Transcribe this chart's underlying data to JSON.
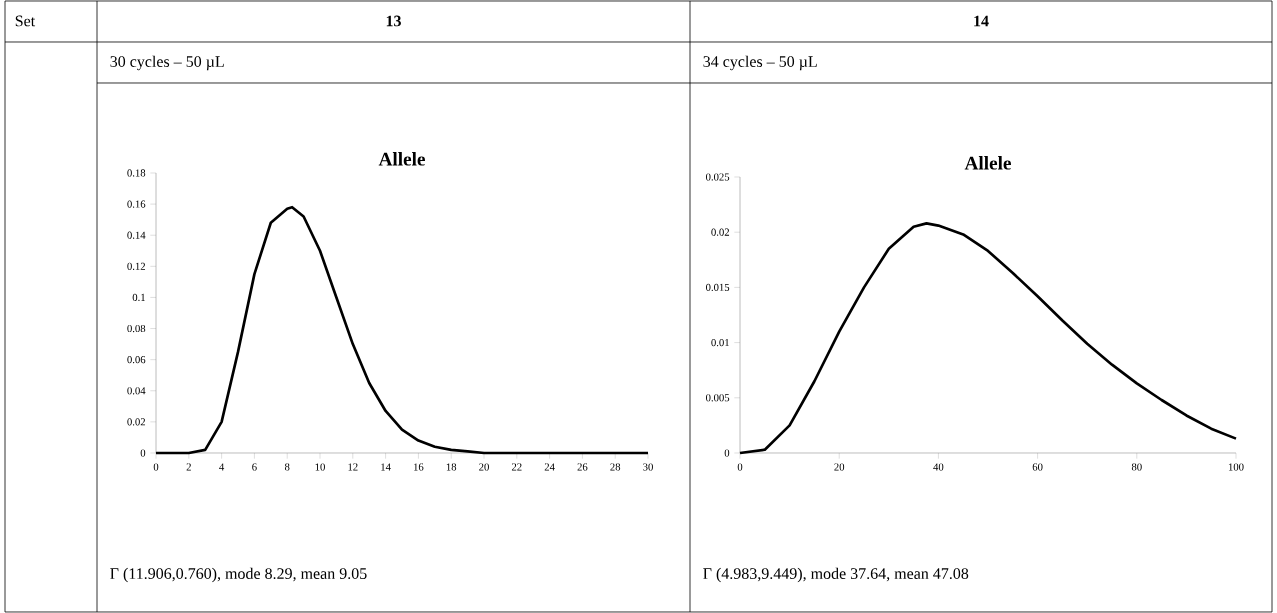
{
  "chart_data": [
    {
      "type": "line",
      "title": "Allele",
      "subtitle": "30 cycles – 50 µL",
      "annotations": [
        "Set",
        "13",
        "Γ (11.906,0.760), mode 8.29, mean 9.05"
      ],
      "x": [
        0,
        1,
        2,
        3,
        4,
        5,
        6,
        7,
        8,
        8.3,
        9,
        10,
        11,
        12,
        13,
        14,
        15,
        16,
        17,
        18,
        19,
        20,
        22,
        30
      ],
      "series": [
        {
          "color": "#000000",
          "values": [
            0,
            0,
            0,
            0.002,
            0.02,
            0.065,
            0.115,
            0.148,
            0.157,
            0.158,
            0.152,
            0.13,
            0.1,
            0.07,
            0.045,
            0.027,
            0.015,
            0.008,
            0.004,
            0.002,
            0.001,
            0,
            0,
            0
          ]
        }
      ],
      "xlim": [
        0,
        30
      ],
      "xticks": [
        0,
        2,
        4,
        6,
        8,
        10,
        12,
        14,
        16,
        18,
        20,
        22,
        24,
        26,
        28,
        30
      ],
      "ylim": [
        0,
        0.18
      ],
      "yticks": [
        0,
        0.02,
        0.04,
        0.06,
        0.08,
        0.1,
        0.12,
        0.14,
        0.16,
        0.18
      ]
    },
    {
      "type": "line",
      "title": "Allele",
      "subtitle": "34 cycles – 50 µL",
      "annotations": [
        "14",
        "Γ (4.983,9.449), mode 37.64, mean 47.08"
      ],
      "x": [
        0,
        5,
        10,
        15,
        20,
        25,
        30,
        35,
        37.6,
        40,
        45,
        50,
        55,
        60,
        65,
        70,
        75,
        80,
        85,
        90,
        95,
        100
      ],
      "series": [
        {
          "color": "#000000",
          "values": [
            0,
            0.0003,
            0.0025,
            0.0065,
            0.011,
            0.015,
            0.0185,
            0.0205,
            0.0208,
            0.0206,
            0.0198,
            0.0183,
            0.0163,
            0.0142,
            0.012,
            0.0099,
            0.008,
            0.0063,
            0.0048,
            0.0034,
            0.0022,
            0.0013
          ]
        }
      ],
      "xlim": [
        0,
        100
      ],
      "xticks": [
        0,
        20,
        40,
        60,
        80,
        100
      ],
      "ylim": [
        0,
        0.025
      ],
      "yticks": [
        0,
        0.005,
        0.01,
        0.015,
        0.02,
        0.025
      ]
    }
  ]
}
